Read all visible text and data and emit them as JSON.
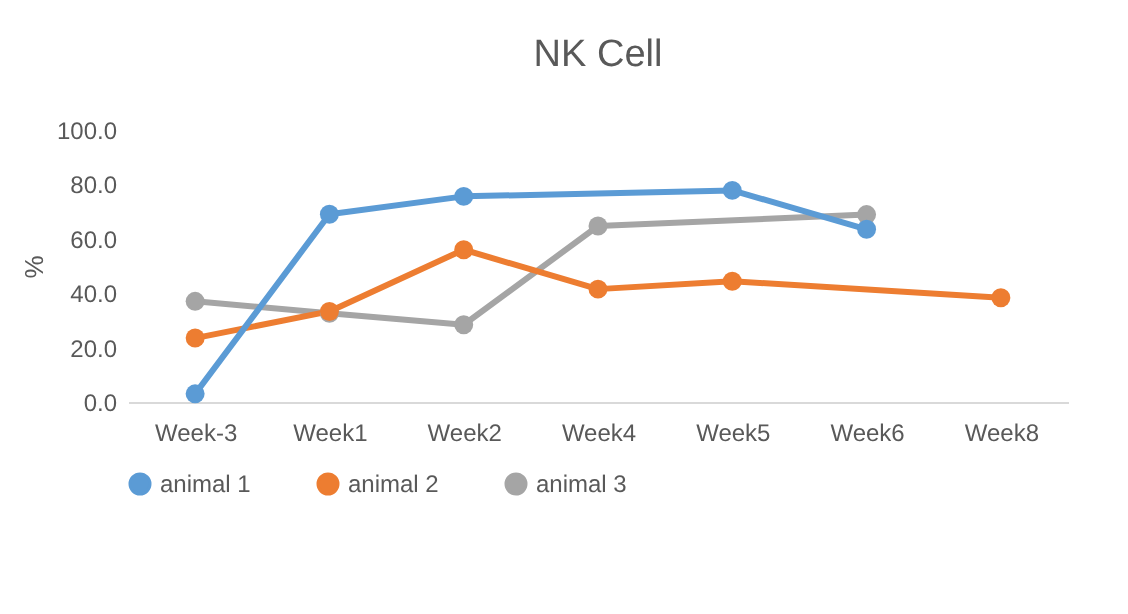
{
  "chart_data": {
    "type": "line",
    "title": "NK Cell",
    "ylabel": "%",
    "categories": [
      "Week-3",
      "Week1",
      "Week2",
      "Week4",
      "Week5",
      "Week6",
      "Week8"
    ],
    "series": [
      {
        "name": "animal 1",
        "color": "#5b9bd5",
        "values": [
          3,
          69,
          75.6,
          null,
          77.8,
          63.5,
          null
        ]
      },
      {
        "name": "animal 2",
        "color": "#ed7d31",
        "values": [
          23.5,
          33.3,
          56,
          41.5,
          44.4,
          null,
          38.3
        ]
      },
      {
        "name": "animal 3",
        "color": "#a5a5a5",
        "values": [
          37,
          32.6,
          28.4,
          64.7,
          null,
          68.9,
          null
        ]
      }
    ],
    "ylim": [
      0,
      100
    ],
    "yticks": [
      {
        "value": 0,
        "label": "0.0"
      },
      {
        "value": 20,
        "label": "20.0"
      },
      {
        "value": 40,
        "label": "40.0"
      },
      {
        "value": 60,
        "label": "60.0"
      },
      {
        "value": 80,
        "label": "80.0"
      },
      {
        "value": 100,
        "label": "100.0"
      }
    ],
    "grid": false,
    "legend": "bottom",
    "marker": "circle",
    "line_style": "solid"
  }
}
